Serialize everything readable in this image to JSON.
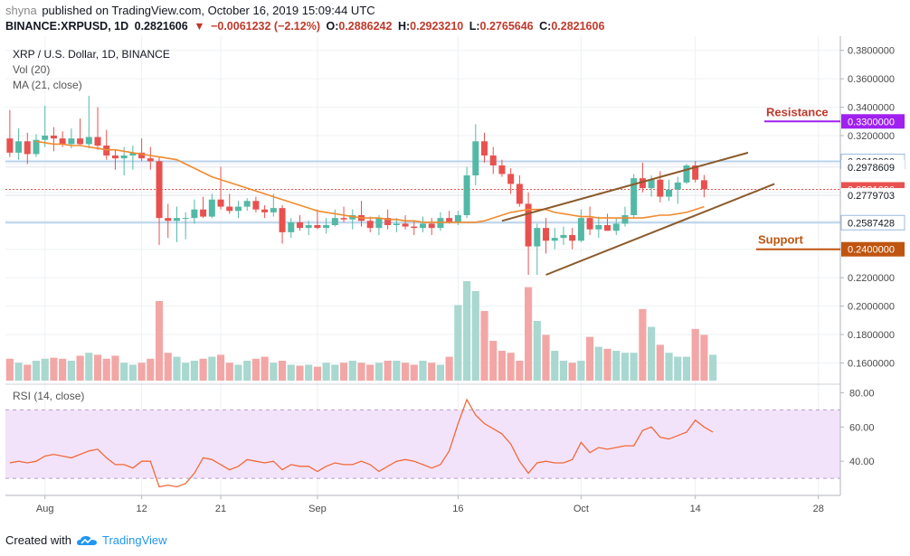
{
  "header": {
    "user": "shyna",
    "published_text": "published on TradingView.com, October 16, 2019 15:09:44 UTC",
    "symbol_interval": "BINANCE:XRPUSD, 1D",
    "last": "0.2821606",
    "change": "−0.0061232 (−2.12%)",
    "o_label": "O:",
    "o_val": "0.2886242",
    "h_label": "H:",
    "h_val": "0.2923210",
    "l_label": "L:",
    "l_val": "0.2765646",
    "c_label": "C:",
    "c_val": "0.2821606"
  },
  "legend": {
    "title": "XRP / U.S. Dollar, 1D, BINANCE",
    "vol": "Vol (20)",
    "ma": "MA (21, close)",
    "rsi": "RSI (14, close)"
  },
  "footer": {
    "created_with": "Created with",
    "brand": "TradingView"
  },
  "colors": {
    "up": "#53b9a6",
    "down": "#e8514f",
    "vol_up": "#a8d8d0",
    "vol_down": "#f2a7a6",
    "ma": "#f08b2f",
    "channel": "#8b5a2b",
    "resistance": "#a020f0",
    "support": "#c0550f",
    "rsi_line": "#f06a3a",
    "rsi_band": "#f3e3fa"
  },
  "chart_data": {
    "type": "candlestick",
    "price_axis": {
      "ylim": [
        0.145,
        0.39
      ],
      "ticks": [
        "0.3800000",
        "0.3600000",
        "0.3400000",
        "0.3200000",
        "0.3000000",
        "0.2800000",
        "0.2600000",
        "0.2400000",
        "0.2200000",
        "0.2000000",
        "0.1800000",
        "0.1600000"
      ],
      "labels": [
        {
          "value": 0.301839,
          "text": "0.3018390",
          "style": "blue"
        },
        {
          "value": 0.2978609,
          "text": "0.2978609",
          "style": "plain"
        },
        {
          "value": 0.2821606,
          "text": "0.2821606",
          "style": "red"
        },
        {
          "value": 0.2779703,
          "text": "0.2779703",
          "style": "plain"
        },
        {
          "value": 0.2587428,
          "text": "0.2587428",
          "style": "blue"
        }
      ]
    },
    "x_axis": {
      "ticks": [
        {
          "index": 4,
          "label": "Aug"
        },
        {
          "index": 15,
          "label": "12"
        },
        {
          "index": 24,
          "label": "21"
        },
        {
          "index": 35,
          "label": "Sep"
        },
        {
          "index": 51,
          "label": "16"
        },
        {
          "index": 65,
          "label": "Oct"
        },
        {
          "index": 78,
          "label": "14"
        },
        {
          "index": 92,
          "label": "28"
        }
      ],
      "n_slots": 95
    },
    "candles": [
      {
        "o": 0.318,
        "h": 0.338,
        "l": 0.305,
        "c": 0.308
      },
      {
        "o": 0.308,
        "h": 0.325,
        "l": 0.303,
        "c": 0.316
      },
      {
        "o": 0.316,
        "h": 0.322,
        "l": 0.3,
        "c": 0.307
      },
      {
        "o": 0.307,
        "h": 0.321,
        "l": 0.305,
        "c": 0.317
      },
      {
        "o": 0.317,
        "h": 0.341,
        "l": 0.312,
        "c": 0.32
      },
      {
        "o": 0.32,
        "h": 0.326,
        "l": 0.309,
        "c": 0.318
      },
      {
        "o": 0.318,
        "h": 0.323,
        "l": 0.312,
        "c": 0.314
      },
      {
        "o": 0.314,
        "h": 0.325,
        "l": 0.311,
        "c": 0.318
      },
      {
        "o": 0.318,
        "h": 0.332,
        "l": 0.313,
        "c": 0.314
      },
      {
        "o": 0.314,
        "h": 0.348,
        "l": 0.311,
        "c": 0.319
      },
      {
        "o": 0.319,
        "h": 0.34,
        "l": 0.31,
        "c": 0.313
      },
      {
        "o": 0.313,
        "h": 0.324,
        "l": 0.303,
        "c": 0.306
      },
      {
        "o": 0.306,
        "h": 0.31,
        "l": 0.296,
        "c": 0.304
      },
      {
        "o": 0.304,
        "h": 0.312,
        "l": 0.292,
        "c": 0.306
      },
      {
        "o": 0.306,
        "h": 0.313,
        "l": 0.296,
        "c": 0.308
      },
      {
        "o": 0.308,
        "h": 0.318,
        "l": 0.302,
        "c": 0.304
      },
      {
        "o": 0.304,
        "h": 0.312,
        "l": 0.296,
        "c": 0.302
      },
      {
        "o": 0.302,
        "h": 0.305,
        "l": 0.243,
        "c": 0.262
      },
      {
        "o": 0.262,
        "h": 0.272,
        "l": 0.248,
        "c": 0.26
      },
      {
        "o": 0.26,
        "h": 0.27,
        "l": 0.245,
        "c": 0.262
      },
      {
        "o": 0.262,
        "h": 0.266,
        "l": 0.247,
        "c": 0.262
      },
      {
        "o": 0.262,
        "h": 0.275,
        "l": 0.258,
        "c": 0.268
      },
      {
        "o": 0.268,
        "h": 0.277,
        "l": 0.262,
        "c": 0.263
      },
      {
        "o": 0.263,
        "h": 0.279,
        "l": 0.262,
        "c": 0.275
      },
      {
        "o": 0.275,
        "h": 0.298,
        "l": 0.268,
        "c": 0.27
      },
      {
        "o": 0.27,
        "h": 0.279,
        "l": 0.265,
        "c": 0.267
      },
      {
        "o": 0.267,
        "h": 0.274,
        "l": 0.262,
        "c": 0.27
      },
      {
        "o": 0.27,
        "h": 0.276,
        "l": 0.267,
        "c": 0.274
      },
      {
        "o": 0.274,
        "h": 0.277,
        "l": 0.266,
        "c": 0.268
      },
      {
        "o": 0.268,
        "h": 0.271,
        "l": 0.262,
        "c": 0.266
      },
      {
        "o": 0.266,
        "h": 0.279,
        "l": 0.263,
        "c": 0.269
      },
      {
        "o": 0.269,
        "h": 0.271,
        "l": 0.244,
        "c": 0.252
      },
      {
        "o": 0.252,
        "h": 0.262,
        "l": 0.248,
        "c": 0.259
      },
      {
        "o": 0.259,
        "h": 0.264,
        "l": 0.253,
        "c": 0.255
      },
      {
        "o": 0.255,
        "h": 0.26,
        "l": 0.25,
        "c": 0.257
      },
      {
        "o": 0.257,
        "h": 0.268,
        "l": 0.254,
        "c": 0.255
      },
      {
        "o": 0.255,
        "h": 0.262,
        "l": 0.251,
        "c": 0.257
      },
      {
        "o": 0.257,
        "h": 0.268,
        "l": 0.256,
        "c": 0.262
      },
      {
        "o": 0.262,
        "h": 0.27,
        "l": 0.259,
        "c": 0.261
      },
      {
        "o": 0.261,
        "h": 0.268,
        "l": 0.254,
        "c": 0.264
      },
      {
        "o": 0.264,
        "h": 0.274,
        "l": 0.256,
        "c": 0.26
      },
      {
        "o": 0.26,
        "h": 0.263,
        "l": 0.252,
        "c": 0.255
      },
      {
        "o": 0.255,
        "h": 0.264,
        "l": 0.25,
        "c": 0.262
      },
      {
        "o": 0.262,
        "h": 0.268,
        "l": 0.254,
        "c": 0.257
      },
      {
        "o": 0.257,
        "h": 0.262,
        "l": 0.252,
        "c": 0.258
      },
      {
        "o": 0.258,
        "h": 0.264,
        "l": 0.254,
        "c": 0.256
      },
      {
        "o": 0.256,
        "h": 0.26,
        "l": 0.25,
        "c": 0.255
      },
      {
        "o": 0.255,
        "h": 0.263,
        "l": 0.252,
        "c": 0.258
      },
      {
        "o": 0.258,
        "h": 0.262,
        "l": 0.25,
        "c": 0.255
      },
      {
        "o": 0.255,
        "h": 0.266,
        "l": 0.253,
        "c": 0.262
      },
      {
        "o": 0.262,
        "h": 0.267,
        "l": 0.258,
        "c": 0.259
      },
      {
        "o": 0.259,
        "h": 0.267,
        "l": 0.257,
        "c": 0.264
      },
      {
        "o": 0.264,
        "h": 0.298,
        "l": 0.262,
        "c": 0.292
      },
      {
        "o": 0.292,
        "h": 0.328,
        "l": 0.285,
        "c": 0.316
      },
      {
        "o": 0.316,
        "h": 0.322,
        "l": 0.301,
        "c": 0.306
      },
      {
        "o": 0.306,
        "h": 0.312,
        "l": 0.293,
        "c": 0.299
      },
      {
        "o": 0.299,
        "h": 0.303,
        "l": 0.291,
        "c": 0.293
      },
      {
        "o": 0.293,
        "h": 0.297,
        "l": 0.279,
        "c": 0.286
      },
      {
        "o": 0.286,
        "h": 0.292,
        "l": 0.27,
        "c": 0.272
      },
      {
        "o": 0.272,
        "h": 0.28,
        "l": 0.222,
        "c": 0.242
      },
      {
        "o": 0.242,
        "h": 0.258,
        "l": 0.222,
        "c": 0.255
      },
      {
        "o": 0.255,
        "h": 0.262,
        "l": 0.237,
        "c": 0.246
      },
      {
        "o": 0.246,
        "h": 0.255,
        "l": 0.24,
        "c": 0.248
      },
      {
        "o": 0.248,
        "h": 0.256,
        "l": 0.243,
        "c": 0.25
      },
      {
        "o": 0.25,
        "h": 0.255,
        "l": 0.24,
        "c": 0.246
      },
      {
        "o": 0.246,
        "h": 0.268,
        "l": 0.245,
        "c": 0.262
      },
      {
        "o": 0.262,
        "h": 0.27,
        "l": 0.25,
        "c": 0.254
      },
      {
        "o": 0.254,
        "h": 0.263,
        "l": 0.248,
        "c": 0.257
      },
      {
        "o": 0.257,
        "h": 0.265,
        "l": 0.253,
        "c": 0.253
      },
      {
        "o": 0.253,
        "h": 0.262,
        "l": 0.25,
        "c": 0.258
      },
      {
        "o": 0.258,
        "h": 0.27,
        "l": 0.256,
        "c": 0.264
      },
      {
        "o": 0.264,
        "h": 0.293,
        "l": 0.262,
        "c": 0.29
      },
      {
        "o": 0.29,
        "h": 0.301,
        "l": 0.28,
        "c": 0.283
      },
      {
        "o": 0.283,
        "h": 0.292,
        "l": 0.277,
        "c": 0.289
      },
      {
        "o": 0.289,
        "h": 0.295,
        "l": 0.273,
        "c": 0.277
      },
      {
        "o": 0.277,
        "h": 0.289,
        "l": 0.274,
        "c": 0.282
      },
      {
        "o": 0.282,
        "h": 0.291,
        "l": 0.272,
        "c": 0.287
      },
      {
        "o": 0.287,
        "h": 0.3,
        "l": 0.286,
        "c": 0.299
      },
      {
        "o": 0.299,
        "h": 0.302,
        "l": 0.287,
        "c": 0.289
      },
      {
        "o": 0.2886,
        "h": 0.2923,
        "l": 0.2766,
        "c": 0.2822
      }
    ],
    "ma_series": [
      0.316,
      0.315,
      0.314,
      0.314,
      0.313,
      0.313,
      0.312,
      0.311,
      0.31,
      0.31,
      0.309,
      0.308,
      0.307,
      0.306,
      0.305,
      0.304,
      0.303,
      0.3,
      0.297,
      0.294,
      0.291,
      0.289,
      0.287,
      0.285,
      0.283,
      0.281,
      0.279,
      0.277,
      0.275,
      0.273,
      0.271,
      0.269,
      0.267,
      0.266,
      0.265,
      0.264,
      0.263,
      0.262,
      0.262,
      0.262,
      0.261,
      0.261,
      0.26,
      0.26,
      0.259,
      0.259,
      0.259,
      0.259,
      0.259,
      0.259,
      0.259,
      0.26,
      0.262,
      0.264,
      0.266,
      0.267,
      0.268,
      0.268,
      0.268,
      0.266,
      0.265,
      0.264,
      0.263,
      0.263,
      0.262,
      0.262,
      0.262,
      0.262,
      0.262,
      0.262,
      0.263,
      0.264,
      0.264,
      0.265,
      0.266,
      0.268,
      0.27
    ],
    "ma_start_index": 3,
    "volume": {
      "max_scale": 100,
      "values": [
        22,
        18,
        16,
        20,
        22,
        23,
        22,
        20,
        25,
        28,
        26,
        22,
        25,
        18,
        16,
        18,
        22,
        80,
        28,
        24,
        18,
        20,
        22,
        24,
        26,
        18,
        16,
        20,
        22,
        24,
        18,
        20,
        16,
        15,
        16,
        14,
        18,
        16,
        18,
        20,
        18,
        16,
        18,
        20,
        20,
        18,
        16,
        20,
        18,
        16,
        24,
        76,
        100,
        90,
        70,
        40,
        30,
        28,
        20,
        94,
        60,
        46,
        30,
        20,
        18,
        20,
        44,
        34,
        32,
        30,
        28,
        28,
        72,
        54,
        36,
        28,
        24,
        24,
        52,
        46,
        26
      ]
    },
    "rsi": {
      "ylim": [
        20,
        85
      ],
      "ticks": [
        "80.00",
        "60.00",
        "40.00"
      ],
      "band": [
        30,
        70
      ],
      "values": [
        39,
        40,
        39,
        40,
        43,
        44,
        43,
        42,
        44,
        46,
        47,
        42,
        38,
        38,
        36,
        40,
        40,
        25,
        26,
        25,
        27,
        33,
        42,
        41,
        38,
        35,
        37,
        41,
        40,
        39,
        40,
        35,
        38,
        37,
        37,
        34,
        37,
        39,
        38,
        38,
        40,
        38,
        34,
        37,
        40,
        41,
        40,
        38,
        36,
        38,
        46,
        62,
        76,
        67,
        62,
        59,
        56,
        50,
        40,
        33,
        39,
        40,
        39,
        39,
        41,
        51,
        45,
        48,
        47,
        48,
        49,
        49,
        58,
        60,
        54,
        53,
        55,
        57,
        64,
        60,
        57
      ]
    }
  },
  "annotations": {
    "resistance": {
      "label": "Resistance",
      "value": 0.33,
      "value_text": "0.3300000"
    },
    "support": {
      "label": "Support",
      "value": 0.24,
      "value_text": "0.2400000"
    },
    "channel": {
      "upper": [
        {
          "index": 56,
          "price": 0.26
        },
        {
          "index": 84,
          "price": 0.308
        }
      ],
      "lower": [
        {
          "index": 61,
          "price": 0.222
        },
        {
          "index": 87,
          "price": 0.286
        }
      ]
    }
  }
}
